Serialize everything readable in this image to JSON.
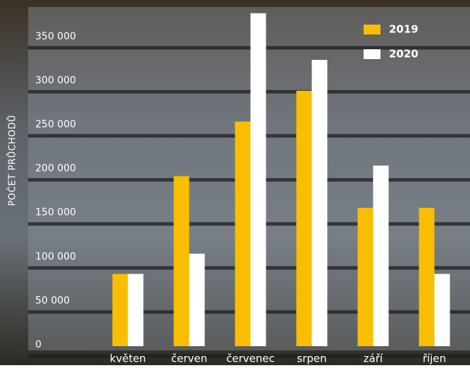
{
  "chart_data": {
    "type": "bar",
    "y_label": "POČET PRŮCHODŮ",
    "categories": [
      "květen",
      "červen",
      "červenec",
      "srpen",
      "září",
      "říjen"
    ],
    "series": [
      {
        "name": "2019",
        "color": "#f9be00",
        "values": [
          82000,
          193000,
          255000,
          290000,
          157000,
          157000
        ]
      },
      {
        "name": "2020",
        "color": "#ffffff",
        "values": [
          82000,
          105000,
          378000,
          325000,
          205000,
          82000
        ]
      }
    ],
    "ylim": [
      0,
      385000
    ],
    "yticks": [
      {
        "value": 0,
        "label": "0"
      },
      {
        "value": 50000,
        "label": "50 000"
      },
      {
        "value": 100000,
        "label": "100 000"
      },
      {
        "value": 150000,
        "label": "150 000"
      },
      {
        "value": 200000,
        "label": "200 000"
      },
      {
        "value": 250000,
        "label": "250 000"
      },
      {
        "value": 300000,
        "label": "300 000"
      },
      {
        "value": 350000,
        "label": "350 000"
      }
    ],
    "grid": true,
    "legend": "top-right"
  }
}
